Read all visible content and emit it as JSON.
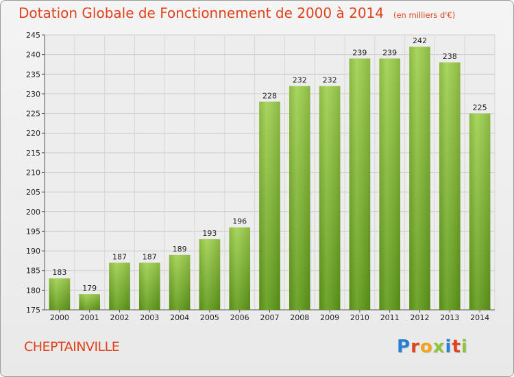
{
  "header": {
    "title": "Dotation Globale de Fonctionnement de 2000 à 2014",
    "units": "(en milliers d'€)"
  },
  "footer": {
    "commune": "CHEPTAINVILLE",
    "logo_letters": [
      "P",
      "r",
      "o",
      "x",
      "i",
      "t",
      "i"
    ],
    "logo_colors": [
      "#2a7fd0",
      "#e0431c",
      "#f2a51a",
      "#8fc33a",
      "#2a7fd0",
      "#e0431c",
      "#8fc33a"
    ]
  },
  "chart_data": {
    "type": "bar",
    "title": "Dotation Globale de Fonctionnement de 2000 à 2014",
    "xlabel": "",
    "ylabel": "",
    "categories": [
      "2000",
      "2001",
      "2002",
      "2003",
      "2004",
      "2005",
      "2006",
      "2007",
      "2008",
      "2009",
      "2010",
      "2011",
      "2012",
      "2013",
      "2014"
    ],
    "values": [
      183,
      179,
      187,
      187,
      189,
      193,
      196,
      228,
      232,
      232,
      239,
      239,
      242,
      238,
      225
    ],
    "ylim": [
      175,
      245
    ],
    "yticks": [
      175,
      180,
      185,
      190,
      195,
      200,
      205,
      210,
      215,
      220,
      225,
      230,
      235,
      240,
      245
    ],
    "grid": true,
    "bar_color_top": "#9fd04e",
    "bar_color_bottom": "#5f9a18"
  }
}
